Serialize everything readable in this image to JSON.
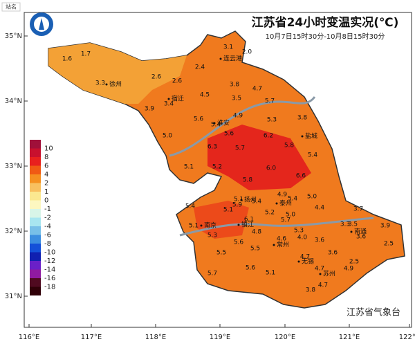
{
  "title": "江苏省24小时变温实况(℃)",
  "subtitle": "10月7日15时30分-10月8日15时30分",
  "station_legend": "站名",
  "source": "江苏省气象台",
  "latitude_labels": [
    "35°N",
    "34°N",
    "33°N",
    "32°N",
    "31°N"
  ],
  "longitude_labels": [
    "116°E",
    "117°E",
    "118°E",
    "119°E",
    "120°E",
    "121°E",
    "122°E"
  ],
  "color_legend": {
    "labels": [
      "10",
      "8",
      "6",
      "4",
      "2",
      "1",
      "0",
      "-1",
      "-2",
      "-4",
      "-6",
      "-8",
      "-10",
      "-12",
      "-14",
      "-16",
      "-18"
    ],
    "colors": [
      "#a0103a",
      "#c8102e",
      "#e8201e",
      "#f05a14",
      "#f59020",
      "#f8c060",
      "#fbe890",
      "#fdf7c0",
      "#d8f5e8",
      "#a8e6f0",
      "#78c0e8",
      "#3c8ee0",
      "#1450d8",
      "#1020b0",
      "#6a20c8",
      "#901aa0",
      "#500a20",
      "#300008"
    ]
  },
  "cities": [
    "连云港",
    "徐州",
    "宿迁",
    "淮安",
    "盐城",
    "扬州",
    "泰州",
    "镇江",
    "南京",
    "常州",
    "南通",
    "无锡",
    "苏州"
  ],
  "values": [
    "1.6",
    "1.7",
    "3.1",
    "2.0",
    "2.4",
    "2.6",
    "2.6",
    "3.3",
    "3.8",
    "4.7",
    "3.5",
    "4.5",
    "5.7",
    "3.4",
    "3.9",
    "4.9",
    "5.6",
    "5.4",
    "5.3",
    "3.8",
    "5.0",
    "5.6",
    "6.2",
    "6.3",
    "5.7",
    "5.8",
    "5.4",
    "5.1",
    "5.2",
    "6.0",
    "6.6",
    "5.8",
    "4.9",
    "5.0",
    "5.4",
    "5.1",
    "5.4",
    "4.4",
    "3.7",
    "5.4",
    "5.9",
    "5.1",
    "5.2",
    "5.0",
    "5.7",
    "6.1",
    "3.3",
    "3.5",
    "3.9",
    "5.1",
    "5.3",
    "4.8",
    "5.3",
    "4.0",
    "3.6",
    "5.6",
    "4.6",
    "3.6",
    "2.5",
    "5.5",
    "5.5",
    "3.6",
    "4.7",
    "4.7",
    "2.5",
    "5.6",
    "4.9",
    "5.1",
    "5.7",
    "4.7",
    "3.8"
  ]
}
